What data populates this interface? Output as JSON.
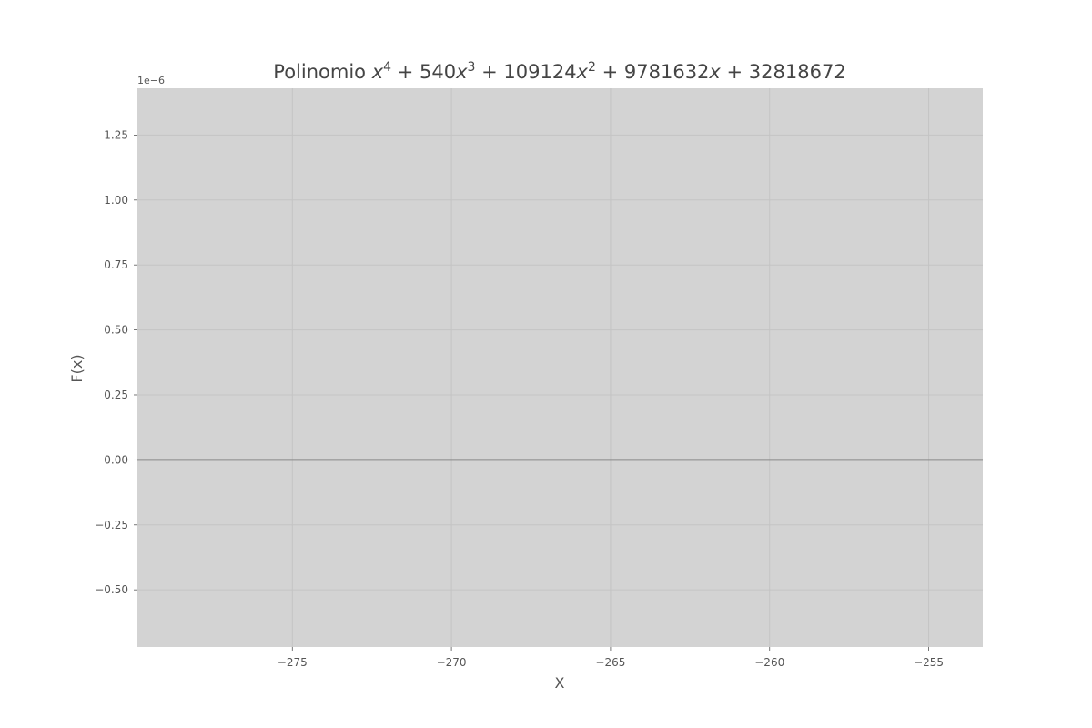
{
  "chart_data": {
    "type": "line",
    "title": {
      "prefix": "Polinomio ",
      "parts": [
        {
          "t": "x",
          "i": true
        },
        {
          "t": "4",
          "sup": true
        },
        {
          "t": " + 540"
        },
        {
          "t": "x",
          "i": true
        },
        {
          "t": "3",
          "sup": true
        },
        {
          "t": " + 109124"
        },
        {
          "t": "x",
          "i": true
        },
        {
          "t": "2",
          "sup": true
        },
        {
          "t": " + 9781632"
        },
        {
          "t": "x",
          "i": true
        },
        {
          "t": " + 32818672"
        }
      ]
    },
    "xlabel": "X",
    "ylabel": "F(x)",
    "y_offset_label": "1e−6",
    "xlim": [
      -279.87,
      -253.3
    ],
    "ylim": [
      -0.72,
      1.43
    ],
    "x_ticks": [
      -275,
      -270,
      -265,
      -260,
      -255
    ],
    "x_tick_labels": [
      "−275",
      "−270",
      "−265",
      "−260",
      "−255"
    ],
    "y_ticks": [
      1.25,
      1.0,
      0.75,
      0.5,
      0.25,
      0.0,
      -0.25,
      -0.5
    ],
    "y_tick_labels": [
      "1.25",
      "1.00",
      "0.75",
      "0.50",
      "0.25",
      "0.00",
      "−0.25",
      "−0.50"
    ],
    "grid": true,
    "series": [
      {
        "x": [
          -279.87,
          -253.3
        ],
        "y": [
          0.0,
          0.0
        ]
      }
    ],
    "colors": {
      "plot_background": "#d3d3d3",
      "grid": "#c4c4c4",
      "line": "#888888",
      "text": "#555555"
    }
  }
}
